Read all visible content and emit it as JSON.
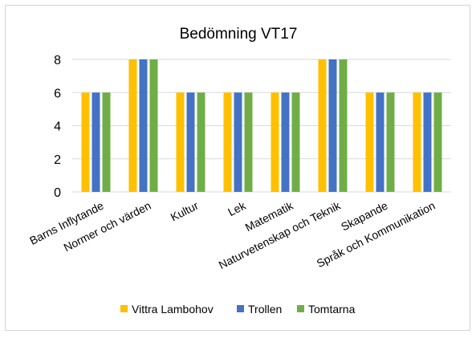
{
  "chart_data": {
    "type": "bar",
    "title": "Bedömning VT17",
    "categories": [
      "Barns Inflytande",
      "Normer och värden",
      "Kultur",
      "Lek",
      "Matematik",
      "Naturvetenskap och Teknik",
      "Skapande",
      "Språk och Kommunikation"
    ],
    "series": [
      {
        "name": "Vittra Lambohov",
        "color": "#FFC000",
        "values": [
          6,
          8,
          6,
          6,
          6,
          8,
          6,
          6
        ]
      },
      {
        "name": "Trollen",
        "color": "#4472C4",
        "values": [
          6,
          8,
          6,
          6,
          6,
          8,
          6,
          6
        ]
      },
      {
        "name": "Tomtarna",
        "color": "#70AD47",
        "values": [
          6,
          8,
          6,
          6,
          6,
          8,
          6,
          6
        ]
      }
    ],
    "yticks": [
      "0",
      "2",
      "4",
      "6",
      "8"
    ],
    "ylim": [
      0,
      8
    ],
    "grid": true,
    "legend": "bottom"
  }
}
